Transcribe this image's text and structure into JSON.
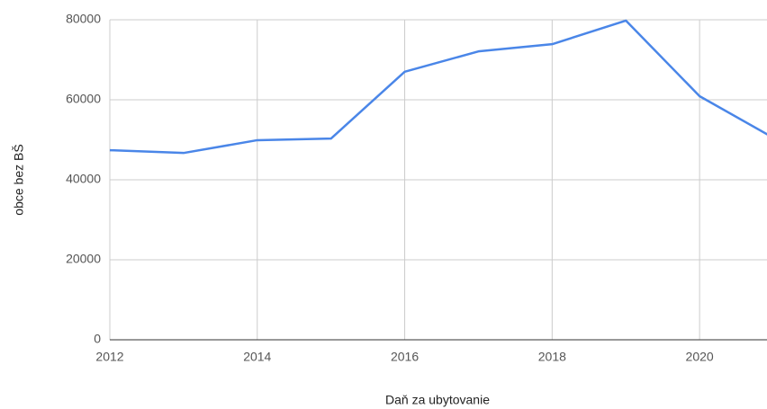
{
  "chart_data": {
    "type": "line",
    "x_label": "Daň za ubytovanie",
    "y_label": "obce bez BŠ",
    "x": [
      2012,
      2013,
      2014,
      2015,
      2016,
      2017,
      2018,
      2019,
      2020,
      2021
    ],
    "series": [
      {
        "name": "obce bez BŠ",
        "color": "#4a86e8",
        "values": [
          47400,
          46700,
          49900,
          50300,
          67000,
          72100,
          73900,
          79800,
          60900,
          50500
        ]
      }
    ],
    "xlim": [
      2012,
      2021
    ],
    "xticks": [
      2012,
      2014,
      2016,
      2018,
      2020
    ],
    "ylim": [
      0,
      80000
    ],
    "yticks": [
      0,
      20000,
      40000,
      60000,
      80000
    ],
    "grid": true
  }
}
